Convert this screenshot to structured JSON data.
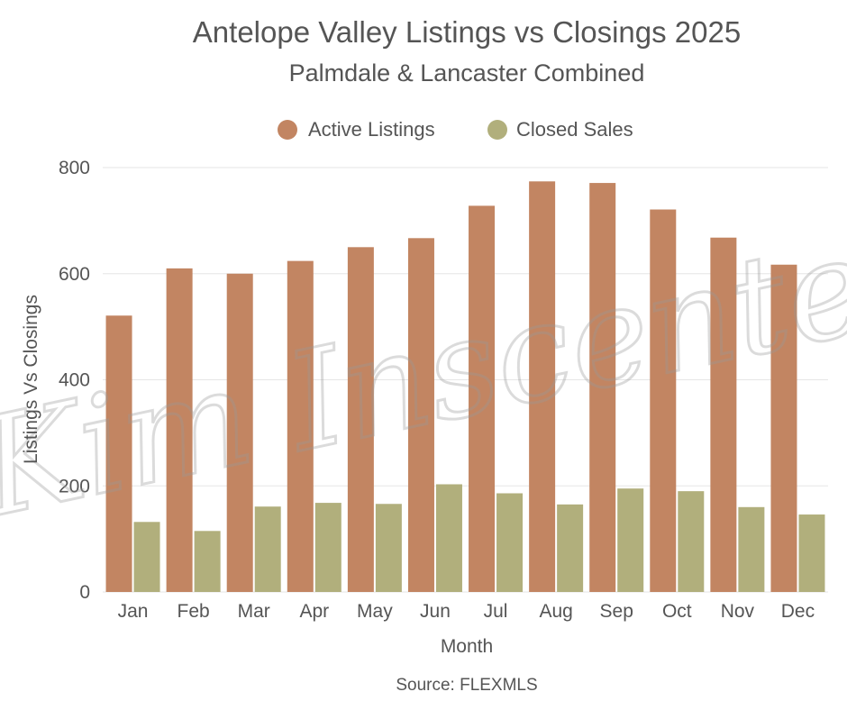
{
  "colors": {
    "active": "#C28562",
    "closed": "#B1AF7C",
    "grid": "#E6E6E6",
    "text": "#555555"
  },
  "watermark": "Kim Inscente",
  "chart_data": {
    "type": "bar",
    "title": "Antelope Valley Listings vs Closings 2025",
    "subtitle": "Palmdale & Lancaster Combined",
    "xlabel": "Month",
    "ylabel": "Listings Vs Closings",
    "source": "Source: FLEXMLS",
    "legend_position": "top-center",
    "grid": true,
    "ylim": [
      0,
      800
    ],
    "yticks": [
      "0",
      "200",
      "400",
      "600",
      "800"
    ],
    "categories": [
      "Jan",
      "Feb",
      "Mar",
      "Apr",
      "May",
      "Jun",
      "Jul",
      "Aug",
      "Sep",
      "Oct",
      "Nov",
      "Dec"
    ],
    "series": [
      {
        "name": "Active Listings",
        "values": [
          521,
          610,
          600,
          624,
          650,
          667,
          728,
          774,
          771,
          721,
          668,
          617
        ]
      },
      {
        "name": "Closed Sales",
        "values": [
          132,
          115,
          161,
          168,
          166,
          203,
          186,
          165,
          195,
          190,
          160,
          146
        ]
      }
    ]
  }
}
